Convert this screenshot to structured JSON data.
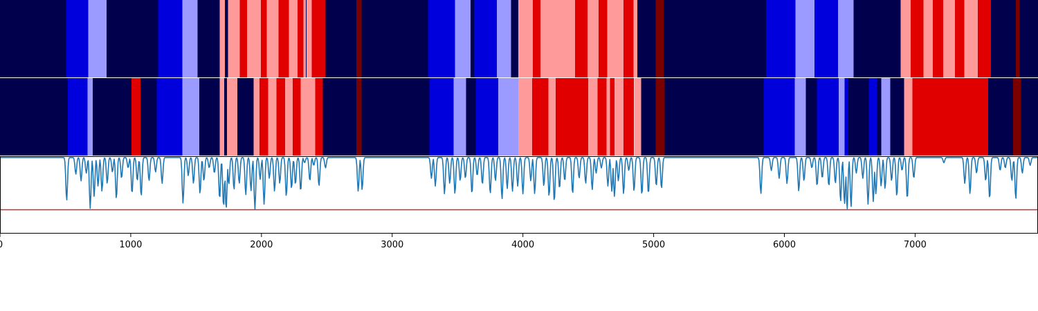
{
  "chart_data": {
    "type": "heatmap",
    "title": "",
    "xlabel": "",
    "ylabel": "",
    "xlim": [
      0,
      7940
    ],
    "x_ticks": [
      0,
      1000,
      2000,
      3000,
      4000,
      5000,
      6000,
      7000
    ],
    "x_tick_labels": [
      "0",
      "1000",
      "2000",
      "3000",
      "4000",
      "5000",
      "6000",
      "7000"
    ],
    "state_colors": {
      "0": "#00004c",
      "1": "#0000dd",
      "2": "#9a9aff",
      "3": "#ff9a9a",
      "4": "#e00000",
      "5": "#7a0000"
    },
    "tracks": [
      {
        "segments": [
          [
            0,
            505,
            0
          ],
          [
            505,
            675,
            1
          ],
          [
            675,
            815,
            2
          ],
          [
            815,
            1210,
            0
          ],
          [
            1210,
            1395,
            1
          ],
          [
            1395,
            1510,
            2
          ],
          [
            1510,
            1680,
            0
          ],
          [
            1680,
            1720,
            3
          ],
          [
            1720,
            1745,
            0
          ],
          [
            1745,
            1835,
            3
          ],
          [
            1835,
            1890,
            4
          ],
          [
            1890,
            1995,
            3
          ],
          [
            1995,
            2040,
            4
          ],
          [
            2040,
            2130,
            3
          ],
          [
            2130,
            2210,
            4
          ],
          [
            2210,
            2275,
            3
          ],
          [
            2275,
            2320,
            4
          ],
          [
            2320,
            2340,
            3
          ],
          [
            2340,
            2345,
            0
          ],
          [
            2345,
            2385,
            3
          ],
          [
            2385,
            2400,
            4
          ],
          [
            2400,
            2490,
            4
          ],
          [
            2490,
            2725,
            0
          ],
          [
            2725,
            2765,
            5
          ],
          [
            2765,
            3275,
            0
          ],
          [
            3275,
            3480,
            1
          ],
          [
            3480,
            3600,
            2
          ],
          [
            3600,
            3625,
            0
          ],
          [
            3625,
            3800,
            1
          ],
          [
            3800,
            3910,
            2
          ],
          [
            3910,
            3965,
            0
          ],
          [
            3965,
            4075,
            3
          ],
          [
            4075,
            4135,
            4
          ],
          [
            4135,
            4400,
            3
          ],
          [
            4400,
            4495,
            4
          ],
          [
            4495,
            4580,
            3
          ],
          [
            4580,
            4645,
            4
          ],
          [
            4645,
            4770,
            3
          ],
          [
            4770,
            4845,
            4
          ],
          [
            4845,
            4875,
            3
          ],
          [
            4875,
            5015,
            0
          ],
          [
            5015,
            5075,
            5
          ],
          [
            5075,
            5860,
            0
          ],
          [
            5860,
            6085,
            1
          ],
          [
            6085,
            6230,
            2
          ],
          [
            6230,
            6410,
            1
          ],
          [
            6410,
            6530,
            2
          ],
          [
            6530,
            6890,
            0
          ],
          [
            6890,
            6965,
            3
          ],
          [
            6965,
            7065,
            4
          ],
          [
            7065,
            7135,
            3
          ],
          [
            7135,
            7215,
            4
          ],
          [
            7215,
            7305,
            3
          ],
          [
            7305,
            7375,
            4
          ],
          [
            7375,
            7480,
            3
          ],
          [
            7480,
            7580,
            4
          ],
          [
            7580,
            7770,
            0
          ],
          [
            7770,
            7800,
            5
          ],
          [
            7800,
            7940,
            0
          ]
        ]
      },
      {
        "segments": [
          [
            0,
            520,
            0
          ],
          [
            520,
            670,
            1
          ],
          [
            670,
            710,
            2
          ],
          [
            710,
            1005,
            0
          ],
          [
            1005,
            1075,
            4
          ],
          [
            1075,
            1200,
            0
          ],
          [
            1200,
            1395,
            1
          ],
          [
            1395,
            1525,
            2
          ],
          [
            1525,
            1680,
            0
          ],
          [
            1680,
            1715,
            3
          ],
          [
            1715,
            1735,
            0
          ],
          [
            1735,
            1745,
            3
          ],
          [
            1745,
            1815,
            3
          ],
          [
            1815,
            1940,
            0
          ],
          [
            1940,
            1985,
            3
          ],
          [
            1985,
            2050,
            4
          ],
          [
            2050,
            2115,
            3
          ],
          [
            2115,
            2180,
            4
          ],
          [
            2180,
            2240,
            3
          ],
          [
            2240,
            2300,
            4
          ],
          [
            2300,
            2410,
            3
          ],
          [
            2410,
            2470,
            4
          ],
          [
            2470,
            2725,
            0
          ],
          [
            2725,
            2765,
            5
          ],
          [
            2765,
            3285,
            0
          ],
          [
            3285,
            3470,
            1
          ],
          [
            3470,
            3565,
            2
          ],
          [
            3565,
            3640,
            0
          ],
          [
            3640,
            3810,
            1
          ],
          [
            3810,
            3965,
            2
          ],
          [
            3965,
            4070,
            3
          ],
          [
            4070,
            4195,
            4
          ],
          [
            4195,
            4250,
            3
          ],
          [
            4250,
            4500,
            4
          ],
          [
            4500,
            4570,
            3
          ],
          [
            4570,
            4640,
            4
          ],
          [
            4640,
            4665,
            3
          ],
          [
            4665,
            4700,
            4
          ],
          [
            4700,
            4770,
            3
          ],
          [
            4770,
            4850,
            4
          ],
          [
            4850,
            4905,
            3
          ],
          [
            4905,
            5015,
            0
          ],
          [
            5015,
            5085,
            5
          ],
          [
            5085,
            5840,
            0
          ],
          [
            5840,
            6080,
            1
          ],
          [
            6080,
            6165,
            2
          ],
          [
            6165,
            6250,
            0
          ],
          [
            6250,
            6415,
            1
          ],
          [
            6415,
            6460,
            2
          ],
          [
            6460,
            6490,
            1
          ],
          [
            6490,
            6645,
            0
          ],
          [
            6645,
            6710,
            1
          ],
          [
            6710,
            6740,
            0
          ],
          [
            6740,
            6810,
            2
          ],
          [
            6810,
            6915,
            0
          ],
          [
            6915,
            6980,
            3
          ],
          [
            6980,
            7560,
            4
          ],
          [
            7560,
            7750,
            0
          ],
          [
            7750,
            7810,
            5
          ],
          [
            7810,
            7940,
            0
          ]
        ]
      }
    ],
    "line_series": {
      "color": "#1f77b4",
      "baseline": 1.0,
      "dips": [
        [
          510,
          0.17
        ],
        [
          580,
          0.68
        ],
        [
          620,
          0.55
        ],
        [
          660,
          0.7
        ],
        [
          690,
          0.02
        ],
        [
          720,
          0.25
        ],
        [
          750,
          0.45
        ],
        [
          780,
          0.35
        ],
        [
          820,
          0.5
        ],
        [
          860,
          0.72
        ],
        [
          890,
          0.2
        ],
        [
          930,
          0.6
        ],
        [
          980,
          0.8
        ],
        [
          1010,
          0.3
        ],
        [
          1050,
          0.55
        ],
        [
          1080,
          0.25
        ],
        [
          1140,
          0.55
        ],
        [
          1190,
          0.72
        ],
        [
          1240,
          0.5
        ],
        [
          1400,
          0.12
        ],
        [
          1440,
          0.65
        ],
        [
          1480,
          0.5
        ],
        [
          1530,
          0.3
        ],
        [
          1560,
          0.55
        ],
        [
          1600,
          0.8
        ],
        [
          1640,
          0.7
        ],
        [
          1680,
          0.2
        ],
        [
          1710,
          0.05
        ],
        [
          1730,
          0.0
        ],
        [
          1750,
          0.48
        ],
        [
          1790,
          0.38
        ],
        [
          1830,
          0.5
        ],
        [
          1880,
          0.28
        ],
        [
          1920,
          0.36
        ],
        [
          1950,
          0.0
        ],
        [
          1990,
          0.58
        ],
        [
          2020,
          0.1
        ],
        [
          2060,
          0.6
        ],
        [
          2100,
          0.35
        ],
        [
          2140,
          0.5
        ],
        [
          2190,
          0.25
        ],
        [
          2230,
          0.4
        ],
        [
          2260,
          0.48
        ],
        [
          2300,
          0.35
        ],
        [
          2330,
          0.9
        ],
        [
          2370,
          0.55
        ],
        [
          2400,
          0.85
        ],
        [
          2440,
          0.45
        ],
        [
          2490,
          0.8
        ],
        [
          2740,
          0.35
        ],
        [
          2770,
          0.38
        ],
        [
          3300,
          0.6
        ],
        [
          3330,
          0.45
        ],
        [
          3400,
          0.3
        ],
        [
          3440,
          0.5
        ],
        [
          3480,
          0.3
        ],
        [
          3520,
          0.55
        ],
        [
          3560,
          0.6
        ],
        [
          3610,
          0.3
        ],
        [
          3650,
          0.65
        ],
        [
          3690,
          0.48
        ],
        [
          3750,
          0.3
        ],
        [
          3790,
          0.55
        ],
        [
          3840,
          0.2
        ],
        [
          3880,
          0.4
        ],
        [
          3920,
          0.35
        ],
        [
          3960,
          0.45
        ],
        [
          4000,
          0.3
        ],
        [
          4060,
          0.55
        ],
        [
          4090,
          0.3
        ],
        [
          4160,
          0.45
        ],
        [
          4200,
          0.25
        ],
        [
          4240,
          0.15
        ],
        [
          4280,
          0.4
        ],
        [
          4320,
          0.55
        ],
        [
          4380,
          0.3
        ],
        [
          4430,
          0.6
        ],
        [
          4480,
          0.5
        ],
        [
          4530,
          0.38
        ],
        [
          4560,
          0.7
        ],
        [
          4600,
          0.8
        ],
        [
          4650,
          0.45
        ],
        [
          4680,
          0.35
        ],
        [
          4700,
          0.25
        ],
        [
          4730,
          0.55
        ],
        [
          4770,
          0.3
        ],
        [
          4810,
          0.75
        ],
        [
          4850,
          0.35
        ],
        [
          4910,
          0.28
        ],
        [
          4960,
          0.3
        ],
        [
          5020,
          0.45
        ],
        [
          5060,
          0.4
        ],
        [
          5820,
          0.3
        ],
        [
          5900,
          0.75
        ],
        [
          5960,
          0.6
        ],
        [
          6020,
          0.5
        ],
        [
          6110,
          0.35
        ],
        [
          6150,
          0.55
        ],
        [
          6210,
          0.8
        ],
        [
          6250,
          0.45
        ],
        [
          6290,
          0.6
        ],
        [
          6340,
          0.45
        ],
        [
          6390,
          0.5
        ],
        [
          6430,
          0.15
        ],
        [
          6460,
          0.1
        ],
        [
          6480,
          0.0
        ],
        [
          6510,
          0.05
        ],
        [
          6550,
          0.7
        ],
        [
          6600,
          0.6
        ],
        [
          6640,
          0.1
        ],
        [
          6680,
          0.15
        ],
        [
          6700,
          0.3
        ],
        [
          6740,
          0.45
        ],
        [
          6770,
          0.4
        ],
        [
          6820,
          0.55
        ],
        [
          6860,
          0.25
        ],
        [
          6900,
          0.75
        ],
        [
          6940,
          0.2
        ],
        [
          6990,
          0.6
        ],
        [
          7220,
          0.9
        ],
        [
          7380,
          0.5
        ],
        [
          7420,
          0.3
        ],
        [
          7470,
          0.7
        ],
        [
          7540,
          0.55
        ],
        [
          7570,
          0.2
        ],
        [
          7650,
          0.75
        ],
        [
          7690,
          0.8
        ],
        [
          7740,
          0.55
        ],
        [
          7770,
          0.2
        ],
        [
          7820,
          0.7
        ],
        [
          7880,
          0.85
        ]
      ]
    },
    "threshold": {
      "value": 0.0,
      "color": "#dd2222"
    }
  }
}
